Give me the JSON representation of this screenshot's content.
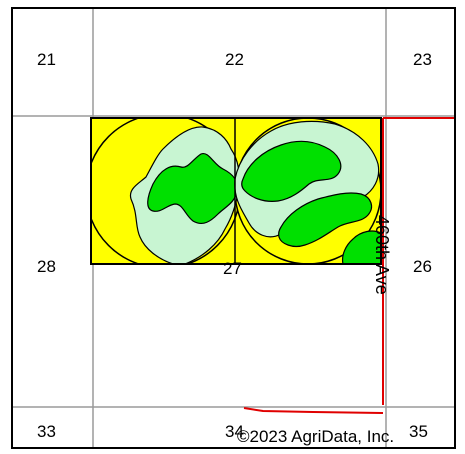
{
  "map": {
    "sections": {
      "s21": "21",
      "s22": "22",
      "s23": "23",
      "s28": "28",
      "s27": "27",
      "s26": "26",
      "s33": "33",
      "s34": "34",
      "s35": "35"
    },
    "road_label": "460th Ave",
    "copyright": "©2023 AgriData, Inc.",
    "colors": {
      "yellow": "#ffff00",
      "green": "#00e000",
      "pale_green": "#c8f5d2",
      "road": "#e00000",
      "grid": "#9a9a9a",
      "outline": "#000000"
    }
  }
}
